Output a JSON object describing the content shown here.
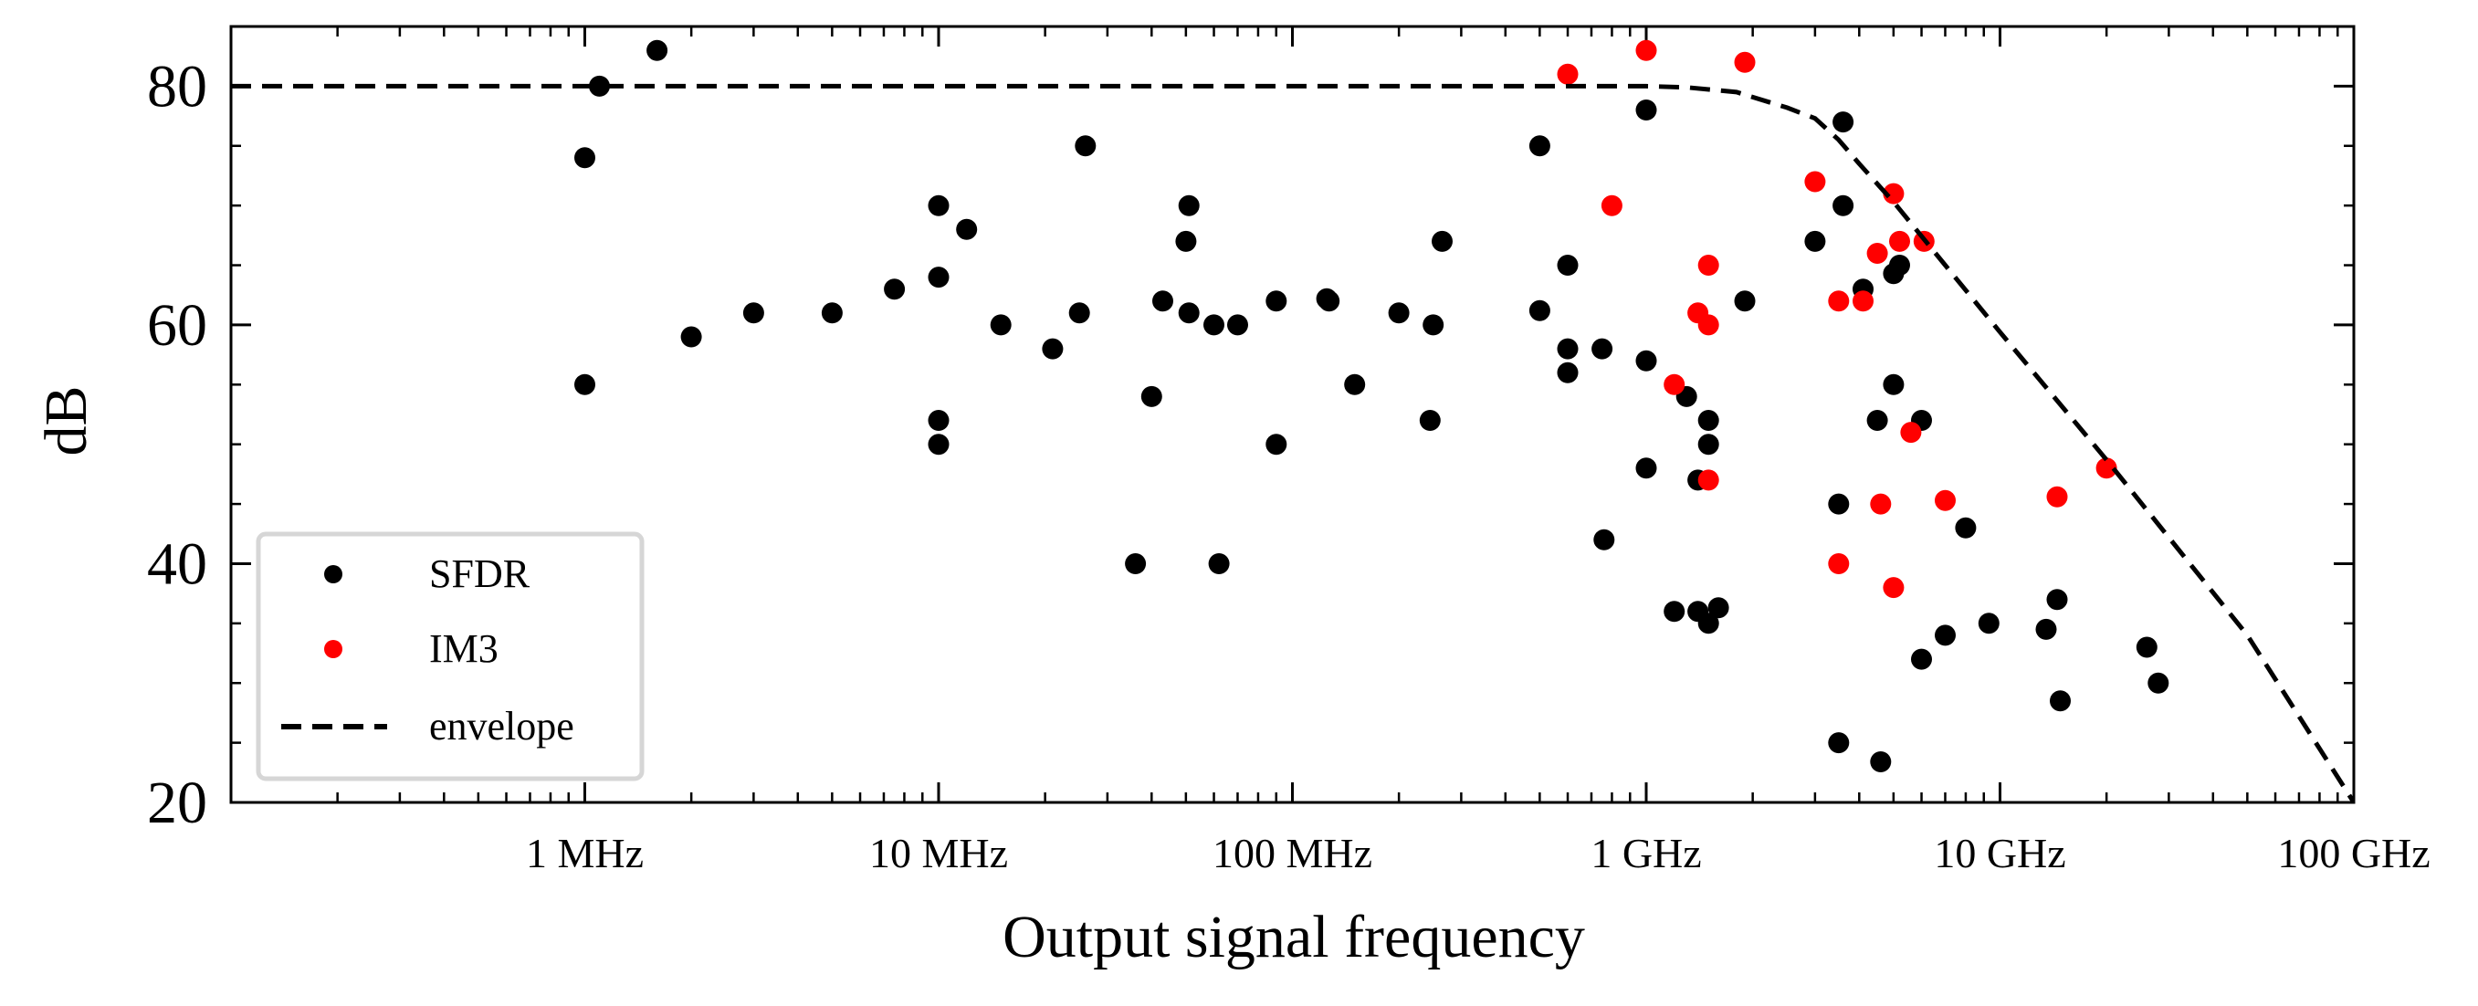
{
  "chart_data": {
    "type": "scatter",
    "xlabel": "Output signal frequency",
    "ylabel": "dB",
    "xscale": "log",
    "xlim": [
      100000,
      100000000000
    ],
    "ylim": [
      20,
      85
    ],
    "x_ticks": [
      {
        "value": 1000000,
        "label": "1 MHz"
      },
      {
        "value": 10000000,
        "label": "10 MHz"
      },
      {
        "value": 100000000,
        "label": "100 MHz"
      },
      {
        "value": 1000000000,
        "label": "1 GHz"
      },
      {
        "value": 10000000000,
        "label": "10 GHz"
      },
      {
        "value": 100000000000,
        "label": "100 GHz"
      }
    ],
    "y_ticks": [
      {
        "value": 20,
        "label": "20"
      },
      {
        "value": 40,
        "label": "40"
      },
      {
        "value": 60,
        "label": "60"
      },
      {
        "value": 80,
        "label": "80"
      }
    ],
    "legend_position": "lower-left",
    "grid": false,
    "series": [
      {
        "name": "SFDR",
        "marker": "dot",
        "color": "#000000",
        "points": [
          [
            1000000,
            74
          ],
          [
            1000000,
            55
          ],
          [
            1100000,
            80
          ],
          [
            1600000,
            83
          ],
          [
            2000000,
            59
          ],
          [
            3000000,
            61
          ],
          [
            5000000,
            61
          ],
          [
            7500000,
            63
          ],
          [
            10000000,
            70
          ],
          [
            10000000,
            64
          ],
          [
            10000000,
            52
          ],
          [
            10000000,
            50
          ],
          [
            12000000,
            68
          ],
          [
            15000000,
            60
          ],
          [
            21000000,
            58
          ],
          [
            25000000,
            61
          ],
          [
            26000000,
            75
          ],
          [
            36000000,
            40
          ],
          [
            40000000,
            54
          ],
          [
            43000000,
            62
          ],
          [
            50000000,
            67
          ],
          [
            51000000,
            70
          ],
          [
            51000000,
            61
          ],
          [
            60000000,
            60
          ],
          [
            62000000,
            40
          ],
          [
            70000000,
            60
          ],
          [
            90000000,
            62
          ],
          [
            90000000,
            50
          ],
          [
            125000000,
            62.2
          ],
          [
            127000000,
            62
          ],
          [
            150000000,
            55
          ],
          [
            200000000,
            61
          ],
          [
            245000000,
            52
          ],
          [
            250000000,
            60
          ],
          [
            265000000,
            67
          ],
          [
            500000000,
            75
          ],
          [
            500000000,
            61.2
          ],
          [
            600000000,
            65
          ],
          [
            600000000,
            58
          ],
          [
            600000000,
            56
          ],
          [
            750000000,
            58
          ],
          [
            760000000,
            42
          ],
          [
            1000000000,
            78
          ],
          [
            1000000000,
            57
          ],
          [
            1000000000,
            48
          ],
          [
            1200000000,
            36
          ],
          [
            1300000000,
            54
          ],
          [
            1400000000,
            47
          ],
          [
            1400000000,
            36
          ],
          [
            1500000000,
            52
          ],
          [
            1500000000,
            50
          ],
          [
            1500000000,
            35
          ],
          [
            1600000000,
            36.3
          ],
          [
            1900000000,
            62
          ],
          [
            3000000000,
            67
          ],
          [
            3500000000,
            45
          ],
          [
            3500000000,
            25
          ],
          [
            3600000000,
            77
          ],
          [
            3600000000,
            70
          ],
          [
            4100000000,
            63
          ],
          [
            4500000000,
            52
          ],
          [
            4600000000,
            23.4
          ],
          [
            5000000000,
            55
          ],
          [
            5000000000,
            64.3
          ],
          [
            5200000000,
            65
          ],
          [
            6000000000,
            52
          ],
          [
            6000000000,
            32
          ],
          [
            7000000000,
            34
          ],
          [
            8000000000,
            43
          ],
          [
            9300000000,
            35
          ],
          [
            13500000000,
            34.5
          ],
          [
            14500000000,
            37
          ],
          [
            14800000000,
            28.5
          ],
          [
            26000000000,
            33
          ],
          [
            28000000000,
            30
          ]
        ]
      },
      {
        "name": "IM3",
        "marker": "dot",
        "color": "#ff0000",
        "points": [
          [
            600000000,
            81
          ],
          [
            800000000,
            70
          ],
          [
            1000000000,
            83
          ],
          [
            1200000000,
            55
          ],
          [
            1400000000,
            61
          ],
          [
            1500000000,
            65
          ],
          [
            1500000000,
            60
          ],
          [
            1500000000,
            47
          ],
          [
            1900000000,
            82
          ],
          [
            3000000000,
            72
          ],
          [
            3500000000,
            62
          ],
          [
            3500000000,
            40
          ],
          [
            4100000000,
            62
          ],
          [
            4500000000,
            66
          ],
          [
            4600000000,
            45
          ],
          [
            5000000000,
            71
          ],
          [
            5000000000,
            38
          ],
          [
            5200000000,
            67
          ],
          [
            5600000000,
            51
          ],
          [
            6100000000,
            67
          ],
          [
            7000000000,
            45.3
          ],
          [
            14500000000,
            45.6
          ],
          [
            20000000000,
            48
          ]
        ]
      },
      {
        "name": "envelope",
        "marker": "dashed-line",
        "color": "#000000",
        "points": [
          [
            100000,
            80
          ],
          [
            1000000000,
            80
          ],
          [
            1300000000,
            79.9
          ],
          [
            1800000000,
            79.5
          ],
          [
            2500000000,
            78.2
          ],
          [
            3000000000,
            77.3
          ],
          [
            3500000000,
            75.5
          ],
          [
            4000000000,
            73.5
          ],
          [
            5000000000,
            70.3
          ],
          [
            7000000000,
            65
          ],
          [
            10000000000,
            59.4
          ],
          [
            20000000000,
            48.7
          ],
          [
            50000000000,
            34
          ],
          [
            100000000000,
            20
          ]
        ]
      }
    ]
  }
}
